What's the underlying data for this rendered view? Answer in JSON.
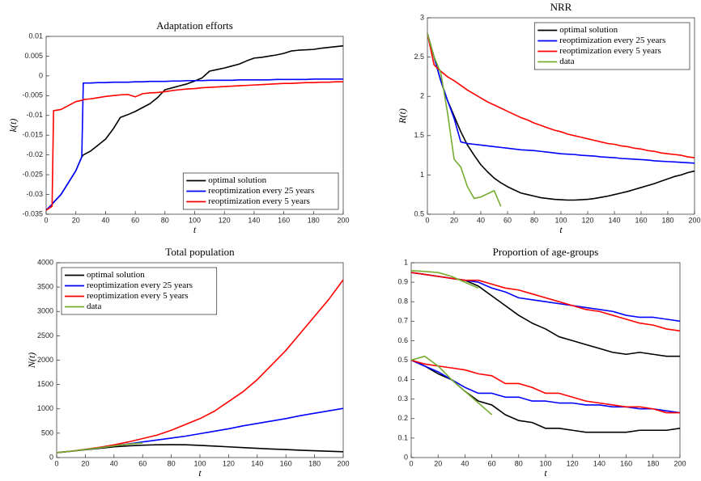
{
  "chart_data": [
    {
      "type": "line",
      "title": "Adaptation efforts",
      "xlabel": "t",
      "ylabel": "k(t)",
      "x": [
        0,
        4,
        5,
        10,
        15,
        20,
        24,
        25,
        30,
        35,
        40,
        45,
        50,
        55,
        60,
        65,
        70,
        75,
        80,
        85,
        90,
        95,
        100,
        105,
        110,
        115,
        120,
        125,
        130,
        135,
        140,
        145,
        150,
        155,
        160,
        165,
        170,
        175,
        180,
        185,
        190,
        195,
        200
      ],
      "series": [
        {
          "name": "optimal solution",
          "color": "#000000",
          "values": [
            -0.034,
            -0.0325,
            -0.032,
            -0.03,
            -0.027,
            -0.024,
            -0.0205,
            -0.02,
            -0.019,
            -0.0175,
            -0.016,
            -0.0135,
            -0.0105,
            -0.0098,
            -0.009,
            -0.008,
            -0.007,
            -0.0055,
            -0.0035,
            -0.003,
            -0.0025,
            -0.002,
            -0.0013,
            -0.0005,
            0.0012,
            0.0016,
            0.002,
            0.0025,
            0.003,
            0.0038,
            0.0045,
            0.0047,
            0.005,
            0.0053,
            0.0057,
            0.0063,
            0.0065,
            0.0066,
            0.0067,
            0.007,
            0.0072,
            0.0074,
            0.0076
          ]
        },
        {
          "name": "reoptimization every 25 years",
          "color": "#0000ff",
          "values": [
            -0.034,
            -0.0325,
            -0.032,
            -0.03,
            -0.027,
            -0.024,
            -0.0205,
            -0.0018,
            -0.0018,
            -0.0017,
            -0.0017,
            -0.0016,
            -0.0016,
            -0.0016,
            -0.0015,
            -0.0015,
            -0.0014,
            -0.0014,
            -0.0014,
            -0.0013,
            -0.0013,
            -0.0012,
            -0.0012,
            -0.0012,
            -0.0011,
            -0.0011,
            -0.0011,
            -0.0011,
            -0.001,
            -0.001,
            -0.001,
            -0.001,
            -0.001,
            -0.0009,
            -0.0009,
            -0.0009,
            -0.0009,
            -0.0009,
            -0.0008,
            -0.0008,
            -0.0008,
            -0.0008,
            -0.0008
          ]
        },
        {
          "name": "reoptimization every 5 years",
          "color": "#ff0000",
          "values": [
            -0.034,
            -0.033,
            -0.0088,
            -0.0085,
            -0.0075,
            -0.0065,
            -0.0062,
            -0.006,
            -0.0058,
            -0.0055,
            -0.0052,
            -0.005,
            -0.0048,
            -0.0047,
            -0.0053,
            -0.0045,
            -0.0043,
            -0.0042,
            -0.004,
            -0.0037,
            -0.0035,
            -0.0033,
            -0.0032,
            -0.003,
            -0.0029,
            -0.0028,
            -0.0027,
            -0.0026,
            -0.0025,
            -0.0024,
            -0.0023,
            -0.0022,
            -0.0021,
            -0.002,
            -0.0019,
            -0.0019,
            -0.0018,
            -0.0017,
            -0.0017,
            -0.0016,
            -0.0016,
            -0.0015,
            -0.0015
          ]
        }
      ],
      "xlim": [
        0,
        200
      ],
      "xticks": [
        0,
        20,
        40,
        60,
        80,
        100,
        120,
        140,
        160,
        180,
        200
      ],
      "ylim": [
        -0.035,
        0.01
      ],
      "yticks": [
        -0.035,
        -0.03,
        -0.025,
        -0.02,
        -0.015,
        -0.01,
        -0.005,
        0,
        0.005,
        0.01
      ],
      "legend": "lower right"
    },
    {
      "type": "line",
      "title": "NRR",
      "xlabel": "t",
      "ylabel": "R(t)",
      "x": [
        0,
        5,
        10,
        15,
        20,
        25,
        30,
        35,
        40,
        45,
        50,
        55,
        60,
        65,
        70,
        75,
        80,
        85,
        90,
        95,
        100,
        105,
        110,
        115,
        120,
        125,
        130,
        135,
        140,
        145,
        150,
        155,
        160,
        165,
        170,
        175,
        180,
        185,
        190,
        195,
        200
      ],
      "series": [
        {
          "name": "optimal solution",
          "color": "#000000",
          "values": [
            2.8,
            2.5,
            2.2,
            1.95,
            1.75,
            1.55,
            1.38,
            1.25,
            1.13,
            1.04,
            0.96,
            0.9,
            0.85,
            0.81,
            0.77,
            0.75,
            0.73,
            0.71,
            0.7,
            0.69,
            0.685,
            0.68,
            0.68,
            0.685,
            0.69,
            0.7,
            0.715,
            0.73,
            0.75,
            0.77,
            0.79,
            0.815,
            0.84,
            0.865,
            0.89,
            0.92,
            0.95,
            0.98,
            1.0,
            1.03,
            1.05
          ]
        },
        {
          "name": "reoptimization every 25 years",
          "color": "#0000ff",
          "values": [
            2.8,
            2.5,
            2.2,
            1.95,
            1.72,
            1.42,
            1.4,
            1.39,
            1.38,
            1.37,
            1.36,
            1.35,
            1.34,
            1.33,
            1.32,
            1.315,
            1.31,
            1.3,
            1.29,
            1.28,
            1.27,
            1.265,
            1.26,
            1.25,
            1.245,
            1.24,
            1.23,
            1.225,
            1.22,
            1.21,
            1.205,
            1.2,
            1.195,
            1.19,
            1.18,
            1.175,
            1.17,
            1.165,
            1.16,
            1.155,
            1.15
          ]
        },
        {
          "name": "reoptimization every 5 years",
          "color": "#ff0000",
          "values": [
            2.8,
            2.4,
            2.32,
            2.25,
            2.2,
            2.14,
            2.08,
            2.03,
            1.98,
            1.93,
            1.89,
            1.85,
            1.81,
            1.77,
            1.73,
            1.7,
            1.66,
            1.63,
            1.6,
            1.57,
            1.55,
            1.52,
            1.5,
            1.48,
            1.46,
            1.44,
            1.42,
            1.4,
            1.39,
            1.37,
            1.36,
            1.34,
            1.33,
            1.31,
            1.3,
            1.28,
            1.27,
            1.26,
            1.25,
            1.23,
            1.22
          ]
        },
        {
          "name": "data",
          "color": "#77ac30",
          "values": [
            2.8,
            2.5,
            2.3,
            1.8,
            1.2,
            1.1,
            0.85,
            0.7,
            0.72,
            0.76,
            0.8,
            0.6,
            null,
            null,
            null,
            null,
            null,
            null,
            null,
            null,
            null,
            null,
            null,
            null,
            null,
            null,
            null,
            null,
            null,
            null,
            null,
            null,
            null,
            null,
            null,
            null,
            null,
            null,
            null,
            null,
            null
          ]
        }
      ],
      "xlim": [
        0,
        200
      ],
      "xticks": [
        0,
        20,
        40,
        60,
        80,
        100,
        120,
        140,
        160,
        180,
        200
      ],
      "ylim": [
        0.5,
        3
      ],
      "yticks": [
        0.5,
        1,
        1.5,
        2,
        2.5,
        3
      ],
      "legend": "upper right"
    },
    {
      "type": "line",
      "title": "Total population",
      "xlabel": "t",
      "ylabel": "N(t)",
      "x": [
        0,
        10,
        20,
        30,
        40,
        50,
        60,
        70,
        80,
        90,
        100,
        110,
        120,
        130,
        140,
        150,
        160,
        170,
        180,
        190,
        200
      ],
      "series": [
        {
          "name": "optimal solution",
          "color": "#000000",
          "values": [
            100,
            130,
            160,
            190,
            220,
            240,
            255,
            262,
            265,
            262,
            250,
            235,
            220,
            205,
            190,
            175,
            165,
            150,
            140,
            130,
            120
          ]
        },
        {
          "name": "reoptimization every 25 years",
          "color": "#0000ff",
          "values": [
            100,
            130,
            165,
            200,
            240,
            280,
            320,
            360,
            400,
            440,
            490,
            540,
            590,
            650,
            700,
            750,
            800,
            860,
            910,
            960,
            1010
          ]
        },
        {
          "name": "reoptimization every 5 years",
          "color": "#ff0000",
          "values": [
            100,
            130,
            170,
            210,
            260,
            320,
            390,
            460,
            560,
            680,
            800,
            950,
            1150,
            1350,
            1600,
            1900,
            2200,
            2550,
            2900,
            3250,
            3650
          ]
        },
        {
          "name": "data",
          "color": "#77ac30",
          "values": [
            100,
            130,
            165,
            200,
            240,
            275,
            300,
            null,
            null,
            null,
            null,
            null,
            null,
            null,
            null,
            null,
            null,
            null,
            null,
            null,
            null
          ]
        }
      ],
      "xlim": [
        0,
        200
      ],
      "xticks": [
        0,
        20,
        40,
        60,
        80,
        100,
        120,
        140,
        160,
        180,
        200
      ],
      "ylim": [
        0,
        4000
      ],
      "yticks": [
        0,
        500,
        1000,
        1500,
        2000,
        2500,
        3000,
        3500,
        4000
      ],
      "legend": "upper left"
    },
    {
      "type": "line",
      "title": "Proportion of age-groups",
      "xlabel": "t",
      "x": [
        0,
        10,
        20,
        30,
        40,
        50,
        60,
        70,
        80,
        90,
        100,
        110,
        120,
        130,
        140,
        150,
        160,
        170,
        180,
        190,
        200
      ],
      "series": [
        {
          "color": "#000000",
          "values": [
            0.95,
            0.94,
            0.93,
            0.92,
            0.91,
            0.88,
            0.83,
            0.78,
            0.73,
            0.69,
            0.66,
            0.62,
            0.6,
            0.58,
            0.56,
            0.54,
            0.53,
            0.54,
            0.53,
            0.52,
            0.52
          ]
        },
        {
          "color": "#0000ff",
          "values": [
            0.95,
            0.94,
            0.93,
            0.92,
            0.91,
            0.9,
            0.87,
            0.85,
            0.82,
            0.81,
            0.8,
            0.79,
            0.78,
            0.77,
            0.76,
            0.75,
            0.73,
            0.72,
            0.72,
            0.71,
            0.7
          ]
        },
        {
          "color": "#ff0000",
          "values": [
            0.95,
            0.94,
            0.93,
            0.92,
            0.91,
            0.91,
            0.89,
            0.87,
            0.86,
            0.84,
            0.82,
            0.8,
            0.78,
            0.76,
            0.75,
            0.73,
            0.71,
            0.69,
            0.68,
            0.66,
            0.65
          ]
        },
        {
          "color": "#77ac30",
          "values": [
            0.96,
            0.955,
            0.95,
            0.93,
            0.9,
            0.87,
            null,
            null,
            null,
            null,
            null,
            null,
            null,
            null,
            null,
            null,
            null,
            null,
            null,
            null,
            null
          ]
        },
        {
          "color": "#000000",
          "values": [
            0.5,
            0.47,
            0.43,
            0.4,
            0.34,
            0.29,
            0.27,
            0.22,
            0.19,
            0.18,
            0.15,
            0.15,
            0.14,
            0.13,
            0.13,
            0.13,
            0.13,
            0.14,
            0.14,
            0.14,
            0.15
          ]
        },
        {
          "color": "#0000ff",
          "values": [
            0.5,
            0.47,
            0.44,
            0.4,
            0.36,
            0.33,
            0.33,
            0.31,
            0.31,
            0.29,
            0.29,
            0.28,
            0.28,
            0.27,
            0.27,
            0.26,
            0.26,
            0.25,
            0.25,
            0.24,
            0.23
          ]
        },
        {
          "color": "#ff0000",
          "values": [
            0.5,
            0.48,
            0.47,
            0.46,
            0.45,
            0.43,
            0.42,
            0.38,
            0.38,
            0.36,
            0.33,
            0.33,
            0.31,
            0.29,
            0.28,
            0.27,
            0.26,
            0.26,
            0.25,
            0.23,
            0.23
          ]
        },
        {
          "color": "#77ac30",
          "values": [
            0.5,
            0.52,
            0.47,
            0.4,
            0.34,
            0.28,
            0.22,
            null,
            null,
            null,
            null,
            null,
            null,
            null,
            null,
            null,
            null,
            null,
            null,
            null,
            null
          ]
        }
      ],
      "xlim": [
        0,
        200
      ],
      "xticks": [
        0,
        20,
        40,
        60,
        80,
        100,
        120,
        140,
        160,
        180,
        200
      ],
      "ylim": [
        0,
        1
      ],
      "yticks": [
        0,
        0.1,
        0.2,
        0.3,
        0.4,
        0.5,
        0.6,
        0.7,
        0.8,
        0.9,
        1
      ]
    }
  ]
}
